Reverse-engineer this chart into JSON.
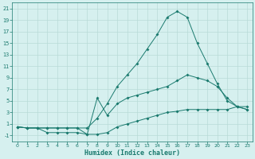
{
  "xlabel": "Humidex (Indice chaleur)",
  "background_color": "#d6f0ef",
  "grid_color": "#b8dbd8",
  "line_color": "#1a7a6e",
  "xlim": [
    -0.5,
    23.5
  ],
  "ylim": [
    -2,
    22
  ],
  "xticks": [
    0,
    1,
    2,
    3,
    4,
    5,
    6,
    7,
    8,
    9,
    10,
    11,
    12,
    13,
    14,
    15,
    16,
    17,
    18,
    19,
    20,
    21,
    22,
    23
  ],
  "yticks": [
    -1,
    1,
    3,
    5,
    7,
    9,
    11,
    13,
    15,
    17,
    19,
    21
  ],
  "line_main_x": [
    0,
    1,
    2,
    3,
    4,
    5,
    6,
    7,
    8,
    9,
    10,
    11,
    12,
    13,
    14,
    15,
    16,
    17,
    18,
    19,
    20,
    21,
    22,
    23
  ],
  "line_main_y": [
    0.5,
    0.3,
    0.3,
    0.3,
    0.3,
    0.3,
    0.3,
    0.3,
    2.0,
    4.5,
    7.5,
    9.5,
    11.5,
    14.0,
    16.5,
    19.5,
    20.5,
    19.5,
    15.0,
    11.5,
    8.0,
    5.0,
    4.0,
    3.5
  ],
  "line_mid_x": [
    0,
    1,
    2,
    3,
    4,
    5,
    6,
    7,
    8,
    9,
    10,
    11,
    12,
    13,
    14,
    15,
    16,
    17,
    18,
    19,
    20,
    21,
    22,
    23
  ],
  "line_mid_y": [
    0.5,
    0.3,
    0.3,
    0.3,
    0.3,
    0.3,
    0.3,
    -0.8,
    5.5,
    2.5,
    4.5,
    5.5,
    6.0,
    6.5,
    7.0,
    7.5,
    8.5,
    9.5,
    9.0,
    8.5,
    7.5,
    5.5,
    4.0,
    3.5
  ],
  "line_bot_x": [
    0,
    1,
    2,
    3,
    4,
    5,
    6,
    7,
    8,
    9,
    10,
    11,
    12,
    13,
    14,
    15,
    16,
    17,
    18,
    19,
    20,
    21,
    22,
    23
  ],
  "line_bot_y": [
    0.5,
    0.3,
    0.3,
    -0.5,
    -0.5,
    -0.5,
    -0.5,
    -0.8,
    -0.8,
    -0.5,
    0.5,
    1.0,
    1.5,
    2.0,
    2.5,
    3.0,
    3.2,
    3.5,
    3.5,
    3.5,
    3.5,
    3.5,
    4.0,
    4.0
  ]
}
